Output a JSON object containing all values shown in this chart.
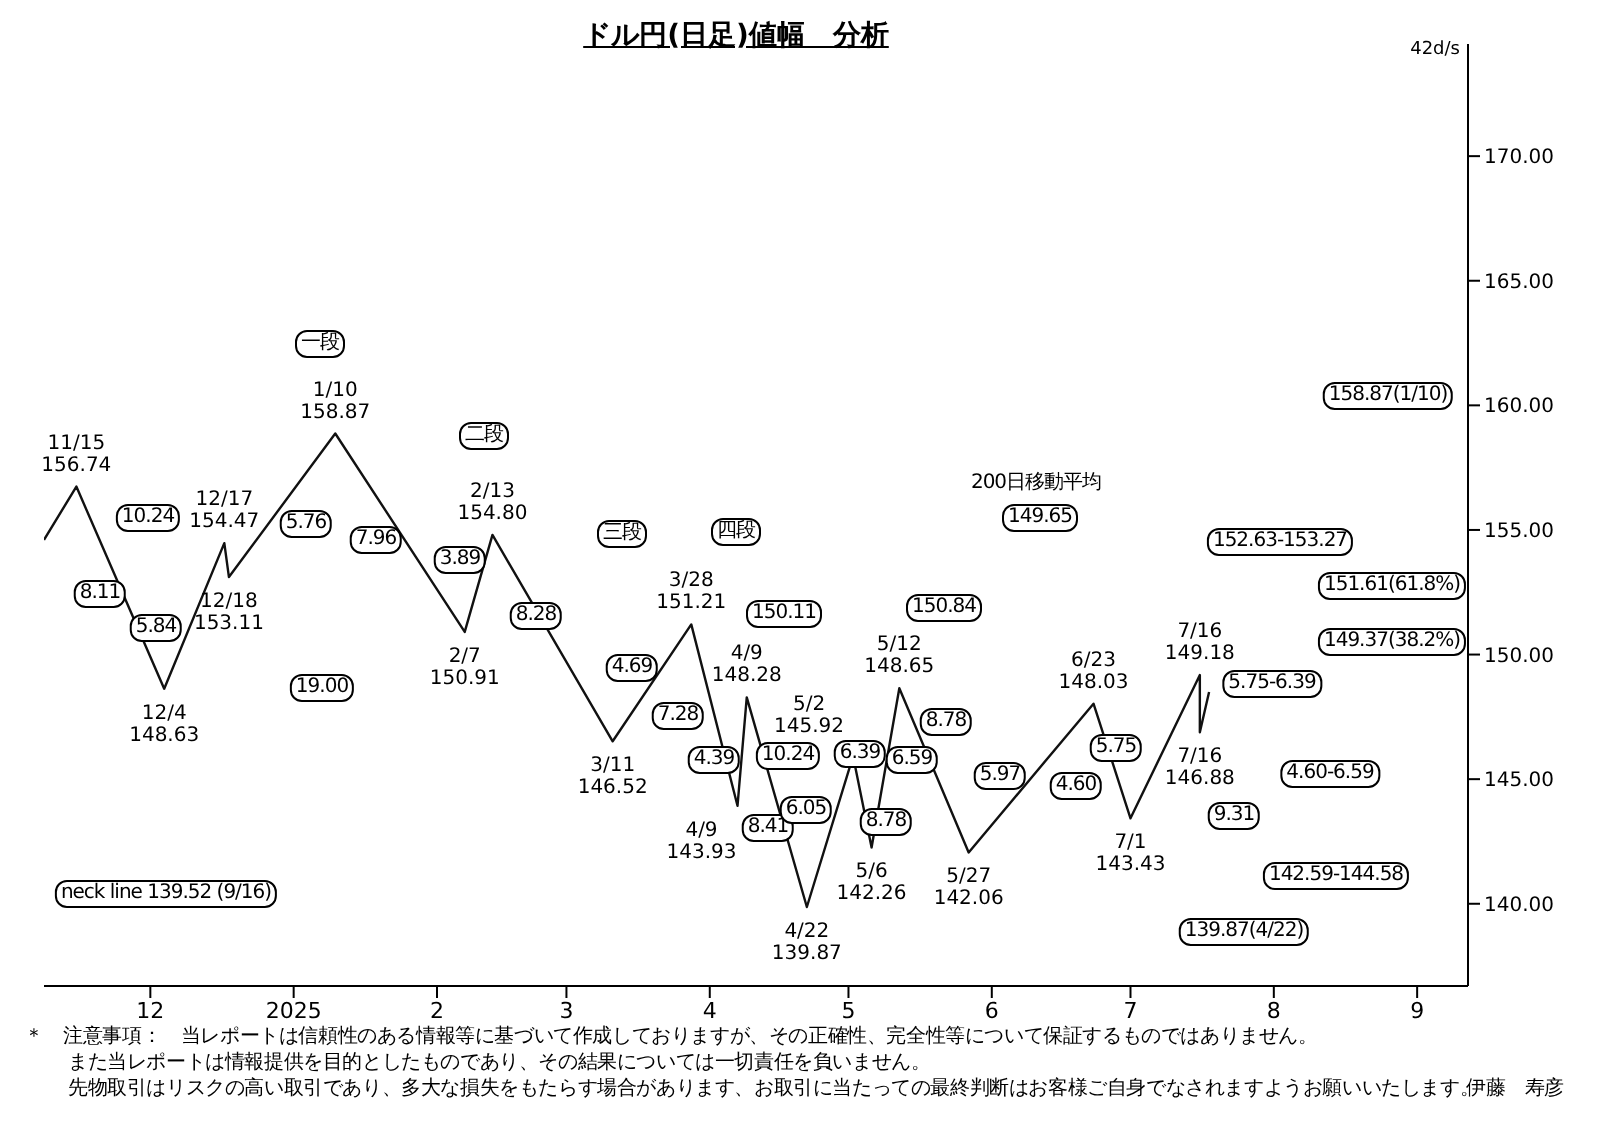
{
  "chart_data": {
    "type": "line",
    "title": "ドル円(日足)値幅　分析",
    "subtitle": "42d/s",
    "x": [
      "2024-11-08",
      "2024-11-15",
      "2024-12-04",
      "2024-12-17",
      "2024-12-18",
      "2025-01-10",
      "2025-02-07",
      "2025-02-13",
      "2025-03-11",
      "2025-03-28",
      "2025-04-07",
      "2025-04-09",
      "2025-04-22",
      "2025-05-02",
      "2025-05-06",
      "2025-05-12",
      "2025-05-27",
      "2025-06-23",
      "2025-07-01",
      "2025-07-16",
      "2025-07-16",
      "2025-07-18"
    ],
    "series": [
      {
        "color": "#111111",
        "values": [
          154.6,
          156.74,
          148.63,
          154.47,
          153.11,
          158.87,
          150.91,
          154.8,
          146.52,
          151.21,
          143.93,
          148.28,
          139.87,
          145.92,
          142.26,
          148.65,
          142.06,
          148.03,
          143.43,
          149.18,
          146.88,
          148.5
        ]
      }
    ],
    "xlim": [
      "2024-11-08",
      "2025-09-12"
    ],
    "xticks": [
      {
        "value": "2024-12-01",
        "label": "12"
      },
      {
        "value": "2025-01-01",
        "label": "2025"
      },
      {
        "value": "2025-02-01",
        "label": "2"
      },
      {
        "value": "2025-03-01",
        "label": "3"
      },
      {
        "value": "2025-04-01",
        "label": "4"
      },
      {
        "value": "2025-05-01",
        "label": "5"
      },
      {
        "value": "2025-06-01",
        "label": "6"
      },
      {
        "value": "2025-07-01",
        "label": "7"
      },
      {
        "value": "2025-08-01",
        "label": "8"
      },
      {
        "value": "2025-09-01",
        "label": "9"
      }
    ],
    "ylim": [
      136.7,
      174.5
    ],
    "yticks": [
      {
        "value": 140,
        "label": "140.00"
      },
      {
        "value": 145,
        "label": "145.00"
      },
      {
        "value": 150,
        "label": "150.00"
      },
      {
        "value": 155,
        "label": "155.00"
      },
      {
        "value": 160,
        "label": "160.00"
      },
      {
        "value": 165,
        "label": "165.00"
      },
      {
        "value": 170,
        "label": "170.00"
      }
    ],
    "grid": false,
    "legend": false,
    "marker": "none",
    "line_style": "solid",
    "annotations": [
      {
        "text": "11/15 156.74",
        "x": "2024-11-15",
        "y": 156.74
      },
      {
        "text": "12/4 148.63",
        "x": "2024-12-04",
        "y": 148.63
      },
      {
        "text": "12/17 154.47",
        "x": "2024-12-17",
        "y": 154.47
      },
      {
        "text": "12/18 153.11",
        "x": "2024-12-18",
        "y": 153.11
      },
      {
        "text": "1/10 158.87",
        "x": "2025-01-10",
        "y": 158.87
      },
      {
        "text": "2/7 150.91",
        "x": "2025-02-07",
        "y": 150.91
      },
      {
        "text": "2/13 154.80",
        "x": "2025-02-13",
        "y": 154.8
      },
      {
        "text": "3/11 146.52",
        "x": "2025-03-11",
        "y": 146.52
      },
      {
        "text": "3/28 151.21",
        "x": "2025-03-28",
        "y": 151.21
      },
      {
        "text": "4/9 143.93",
        "x": "2025-04-07",
        "y": 143.93
      },
      {
        "text": "4/9 148.28",
        "x": "2025-04-09",
        "y": 148.28
      },
      {
        "text": "4/22 139.87",
        "x": "2025-04-22",
        "y": 139.87
      },
      {
        "text": "5/2 145.92",
        "x": "2025-05-02",
        "y": 145.92
      },
      {
        "text": "5/6 142.26",
        "x": "2025-05-06",
        "y": 142.26
      },
      {
        "text": "5/12 148.65",
        "x": "2025-05-12",
        "y": 148.65
      },
      {
        "text": "5/27 142.06",
        "x": "2025-05-27",
        "y": 142.06
      },
      {
        "text": "6/23 148.03",
        "x": "2025-06-23",
        "y": 148.03
      },
      {
        "text": "7/1 143.43",
        "x": "2025-07-01",
        "y": 143.43
      },
      {
        "text": "7/16 149.18",
        "x": "2025-07-16",
        "y": 149.18
      },
      {
        "text": "7/16 146.88",
        "x": "2025-07-16",
        "y": 146.88
      },
      "8.11",
      "10.24",
      "5.84",
      "5.76",
      "一段",
      "19.00",
      "7.96",
      "二段",
      "3.89",
      "8.28",
      "三段",
      "4.69",
      "四段",
      "7.28",
      "4.39",
      "8.41",
      "10.24",
      "150.11",
      "6.05",
      "6.39",
      "6.59",
      "8.78",
      "150.84",
      "8.78",
      "5.97",
      "4.60",
      "5.75",
      "200日移動平均",
      "149.65",
      "152.63-153.27",
      "5.75-6.39",
      "9.31",
      "4.60-6.59",
      "142.59-144.58",
      "139.87(4/22)",
      "158.87(1/10)",
      "151.61(61.8%)",
      "149.37(38.2%)",
      "neck line  139.52 (9/16)",
      "＊　注意事項：　当レポートは信頼性のある情報等に基づいて作成しておりますが、その正確性、完全性等について保証するものではありません。",
      "また当レポートは情報提供を目的としたものであり、その結果については一切責任を負いません。",
      "先物取引はリスクの高い取引であり、多大な損失をもたらす場合があります、お取引に当たっての最終判断はお客様ご自身でなされますようお願いいたします。",
      "伊藤　寿彦"
    ]
  }
}
